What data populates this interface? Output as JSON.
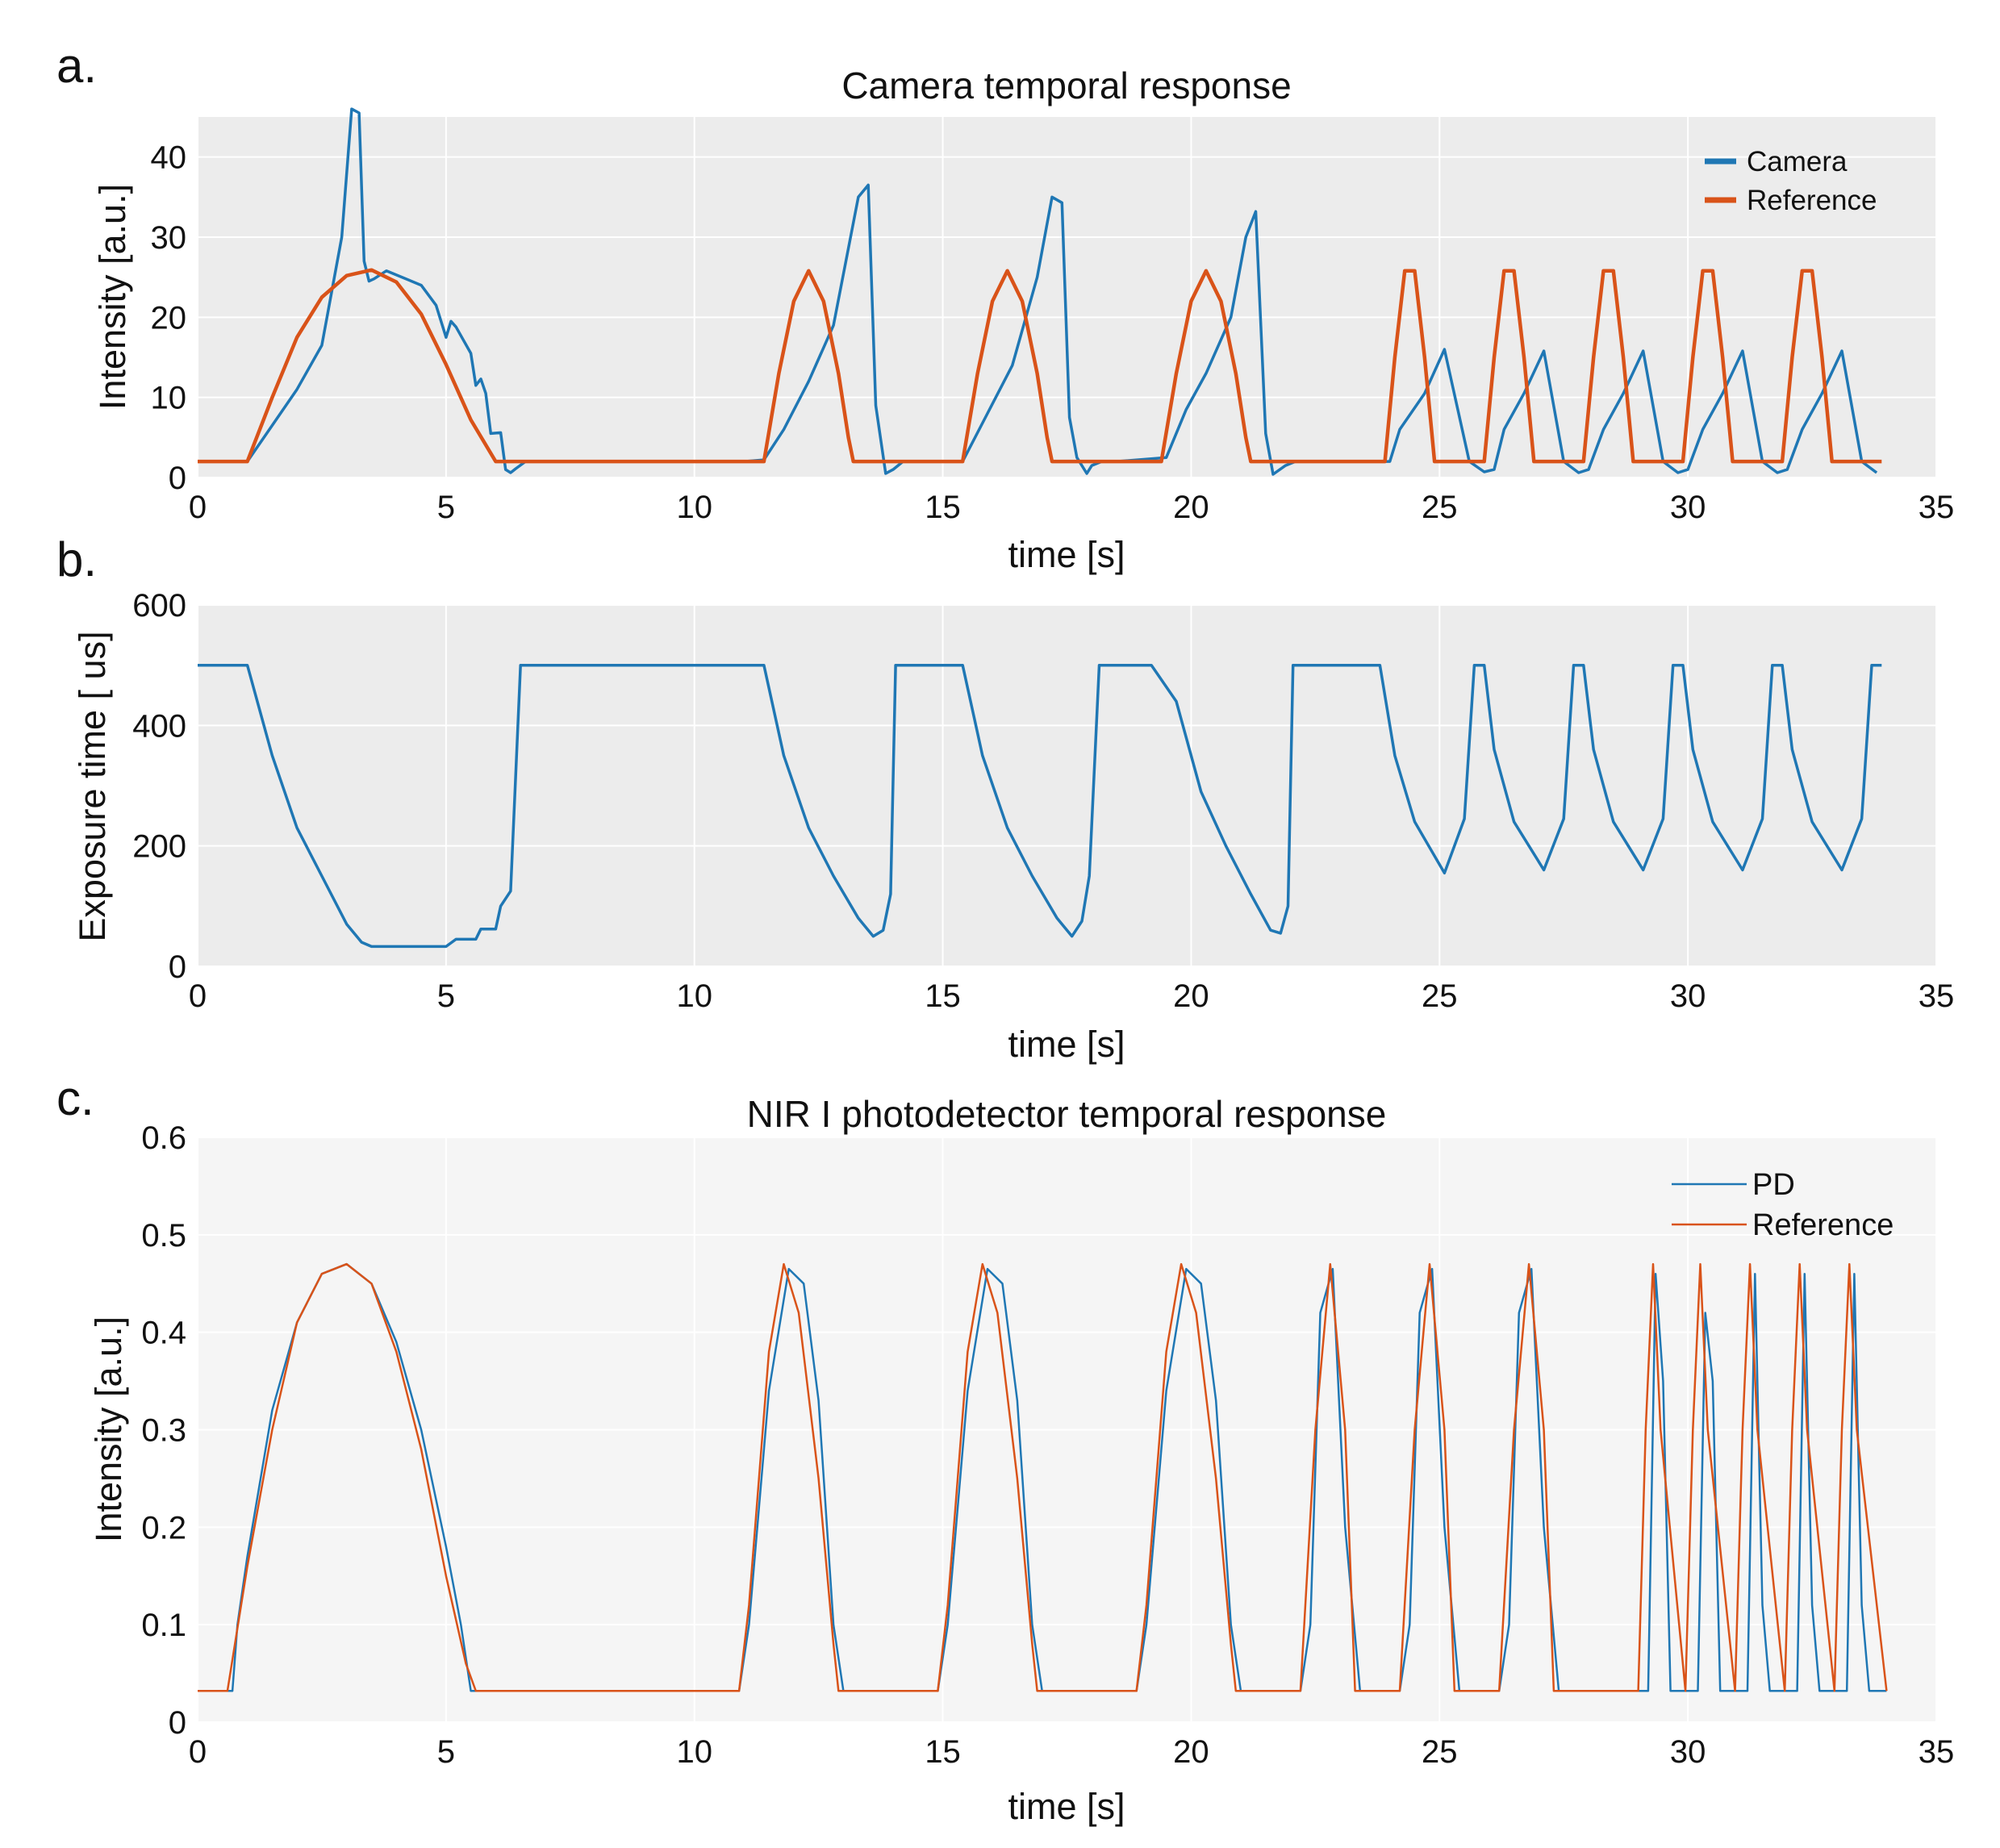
{
  "panels": [
    {
      "letter": "a."
    },
    {
      "letter": "b."
    },
    {
      "letter": "c."
    }
  ],
  "chart_data": [
    {
      "type": "line",
      "title": "Camera temporal response",
      "xlabel": "time [s]",
      "ylabel": "Intensity [a.u.]",
      "xlim": [
        0,
        35
      ],
      "ylim": [
        0,
        45
      ],
      "xticks": [
        0,
        5,
        10,
        15,
        20,
        25,
        30,
        35
      ],
      "yticks": [
        0,
        10,
        20,
        30,
        40
      ],
      "grid": true,
      "legend": "top-right",
      "colors": {
        "Camera": "#1f77b4",
        "Reference": "#d95319"
      },
      "series": [
        {
          "name": "Camera",
          "x": [
            0,
            1.0,
            1.5,
            2.0,
            2.5,
            2.9,
            3.1,
            3.25,
            3.35,
            3.45,
            3.55,
            3.8,
            4.5,
            4.8,
            5.0,
            5.1,
            5.2,
            5.5,
            5.6,
            5.7,
            5.8,
            5.9,
            6.1,
            6.2,
            6.3,
            6.4,
            6.6,
            7.0,
            11.0,
            11.4,
            11.8,
            12.3,
            12.8,
            13.3,
            13.5,
            13.65,
            13.85,
            14.0,
            14.2,
            14.5,
            15.4,
            15.9,
            16.4,
            16.9,
            17.2,
            17.4,
            17.55,
            17.7,
            17.9,
            18.0,
            18.2,
            18.5,
            19.5,
            19.9,
            20.3,
            20.8,
            21.1,
            21.3,
            21.5,
            21.65,
            21.9,
            22.1,
            22.3,
            24.0,
            24.2,
            24.7,
            25.1,
            25.6,
            25.9,
            26.1,
            26.3,
            26.7,
            27.1,
            27.5,
            27.8,
            28.0,
            28.3,
            28.7,
            29.1,
            29.5,
            29.8,
            30.0,
            30.3,
            30.7,
            31.1,
            31.5,
            31.8,
            32.0,
            32.3,
            32.7,
            33.1,
            33.5,
            33.8
          ],
          "y": [
            2,
            2,
            6.5,
            11,
            16.5,
            30,
            46,
            45.5,
            27,
            24.5,
            24.8,
            25.8,
            24,
            21.5,
            17.5,
            19.5,
            18.8,
            15.5,
            11.5,
            12.3,
            10.5,
            5.5,
            5.6,
            1.0,
            0.6,
            1.1,
            2,
            2,
            2,
            2.2,
            6,
            12,
            19,
            35,
            36.5,
            9,
            0.5,
            1.0,
            2.0,
            2.0,
            2.0,
            8,
            14,
            25,
            35,
            34.3,
            7.5,
            2.5,
            0.5,
            1.5,
            2.0,
            2.0,
            2.5,
            8.5,
            13,
            20,
            30,
            33.2,
            5.5,
            0.4,
            1.5,
            2,
            2,
            2,
            6,
            10.5,
            16,
            2,
            0.7,
            1.0,
            6,
            10.5,
            15.8,
            2,
            0.6,
            1.0,
            6,
            10.5,
            15.8,
            2,
            0.6,
            1.0,
            6,
            10.5,
            15.8,
            2,
            0.6,
            1.0,
            6,
            10.5,
            15.8,
            2,
            0.6
          ]
        },
        {
          "name": "Reference",
          "x": [
            0,
            1.0,
            1.5,
            2.0,
            2.5,
            3.0,
            3.5,
            4.0,
            4.5,
            5.0,
            5.5,
            6.0,
            11.4,
            11.7,
            12.0,
            12.3,
            12.6,
            12.9,
            13.1,
            13.2,
            15.4,
            15.7,
            16.0,
            16.3,
            16.6,
            16.9,
            17.1,
            17.2,
            19.4,
            19.7,
            20.0,
            20.3,
            20.6,
            20.9,
            21.1,
            21.2,
            23.9,
            24.1,
            24.3,
            24.5,
            24.7,
            24.9,
            25.9,
            26.1,
            26.3,
            26.5,
            26.7,
            26.9,
            27.9,
            28.1,
            28.3,
            28.5,
            28.7,
            28.9,
            29.9,
            30.1,
            30.3,
            30.5,
            30.7,
            30.9,
            31.9,
            32.1,
            32.3,
            32.5,
            32.7,
            32.9,
            33.9
          ],
          "y": [
            2,
            2,
            10,
            17.5,
            22.5,
            25.2,
            25.9,
            24.4,
            20.4,
            14.1,
            7.2,
            2,
            2,
            13,
            22,
            25.8,
            22,
            13,
            5,
            2,
            2,
            13,
            22,
            25.8,
            22,
            13,
            5,
            2,
            2,
            13,
            22,
            25.8,
            22,
            13,
            5,
            2,
            2,
            15,
            25.8,
            25.8,
            15,
            2,
            2,
            15,
            25.8,
            25.8,
            15,
            2,
            2,
            15,
            25.8,
            25.8,
            15,
            2,
            2,
            15,
            25.8,
            25.8,
            15,
            2,
            2,
            15,
            25.8,
            25.8,
            15,
            2,
            2
          ]
        }
      ]
    },
    {
      "type": "line",
      "title": "",
      "xlabel": "time [s]",
      "ylabel": "Exposure time [ us]",
      "xlim": [
        0,
        35
      ],
      "ylim": [
        0,
        600
      ],
      "xticks": [
        0,
        5,
        10,
        15,
        20,
        25,
        30,
        35
      ],
      "yticks": [
        0,
        200,
        400,
        600
      ],
      "grid": true,
      "colors": {
        "line": "#1f77b4"
      },
      "series": [
        {
          "x": [
            0,
            1.0,
            1.5,
            2.0,
            2.5,
            3.0,
            3.3,
            3.5,
            5.0,
            5.2,
            5.6,
            5.7,
            6.0,
            6.1,
            6.3,
            6.5,
            11.4,
            11.8,
            12.3,
            12.8,
            13.3,
            13.6,
            13.8,
            13.95,
            14.05,
            15.4,
            15.8,
            16.3,
            16.8,
            17.3,
            17.6,
            17.8,
            17.95,
            18.15,
            19.2,
            19.7,
            20.2,
            20.7,
            21.2,
            21.6,
            21.8,
            21.95,
            22.05,
            23.8,
            24.1,
            24.5,
            25.1,
            25.5,
            25.7,
            25.9,
            26.1,
            26.5,
            27.1,
            27.5,
            27.7,
            27.9,
            28.1,
            28.5,
            29.1,
            29.5,
            29.7,
            29.9,
            30.1,
            30.5,
            31.1,
            31.5,
            31.7,
            31.9,
            32.1,
            32.5,
            33.1,
            33.5,
            33.7,
            33.9
          ],
          "y": [
            500,
            500,
            350,
            230,
            150,
            70,
            40,
            33,
            33,
            45,
            45,
            62,
            62,
            100,
            125,
            500,
            500,
            350,
            230,
            150,
            80,
            50,
            60,
            120,
            500,
            500,
            350,
            230,
            150,
            80,
            50,
            75,
            150,
            500,
            500,
            440,
            290,
            200,
            120,
            60,
            55,
            100,
            500,
            500,
            350,
            240,
            155,
            245,
            500,
            500,
            360,
            240,
            160,
            245,
            500,
            500,
            360,
            240,
            160,
            245,
            500,
            500,
            360,
            240,
            160,
            245,
            500,
            500,
            360,
            240,
            160,
            245,
            500,
            500
          ]
        }
      ]
    },
    {
      "type": "line",
      "title": "NIR I photodetector temporal response",
      "xlabel": "time [s]",
      "ylabel": "Intensity [a.u.]",
      "xlim": [
        0,
        35
      ],
      "ylim": [
        0,
        0.6
      ],
      "xticks": [
        0,
        5,
        10,
        15,
        20,
        25,
        30,
        35
      ],
      "yticks": [
        0,
        0.1,
        0.2,
        0.3,
        0.4,
        0.5,
        0.6
      ],
      "grid": true,
      "legend": "top-right",
      "colors": {
        "PD": "#1f77b4",
        "Reference": "#d95319"
      },
      "series": [
        {
          "name": "PD",
          "x": [
            0,
            0.7,
            0.8,
            1.0,
            1.5,
            2.0,
            2.5,
            3.0,
            3.5,
            4.0,
            4.5,
            5.0,
            5.3,
            5.5,
            10.9,
            11.1,
            11.5,
            11.9,
            12.2,
            12.5,
            12.8,
            13.0,
            14.9,
            15.1,
            15.5,
            15.9,
            16.2,
            16.5,
            16.8,
            17.0,
            18.9,
            19.1,
            19.5,
            19.9,
            20.2,
            20.5,
            20.8,
            21.0,
            22.2,
            22.4,
            22.6,
            22.85,
            23.1,
            23.4,
            24.2,
            24.4,
            24.6,
            24.85,
            25.1,
            25.4,
            26.2,
            26.4,
            26.6,
            26.85,
            27.1,
            27.4,
            29.2,
            29.35,
            29.5,
            29.65,
            30.2,
            30.35,
            30.5,
            30.65,
            31.2,
            31.35,
            31.5,
            31.65,
            32.2,
            32.35,
            32.5,
            32.65,
            33.2,
            33.35,
            33.5,
            33.65,
            34.0
          ],
          "y": [
            0.032,
            0.032,
            0.1,
            0.17,
            0.32,
            0.41,
            0.46,
            0.47,
            0.45,
            0.39,
            0.3,
            0.18,
            0.1,
            0.032,
            0.032,
            0.1,
            0.34,
            0.465,
            0.45,
            0.33,
            0.1,
            0.032,
            0.032,
            0.1,
            0.34,
            0.465,
            0.45,
            0.33,
            0.1,
            0.032,
            0.032,
            0.1,
            0.34,
            0.465,
            0.45,
            0.33,
            0.1,
            0.032,
            0.032,
            0.1,
            0.42,
            0.465,
            0.2,
            0.032,
            0.032,
            0.1,
            0.42,
            0.465,
            0.2,
            0.032,
            0.032,
            0.1,
            0.42,
            0.465,
            0.2,
            0.032,
            0.032,
            0.46,
            0.35,
            0.032,
            0.032,
            0.42,
            0.35,
            0.032,
            0.032,
            0.46,
            0.12,
            0.032,
            0.032,
            0.46,
            0.12,
            0.032,
            0.032,
            0.46,
            0.12,
            0.032,
            0.032
          ]
        },
        {
          "name": "Reference",
          "x": [
            0,
            0.6,
            1.0,
            1.5,
            2.0,
            2.5,
            3.0,
            3.5,
            4.0,
            4.5,
            5.0,
            5.4,
            5.6,
            10.9,
            11.1,
            11.5,
            11.8,
            12.1,
            12.5,
            12.8,
            12.9,
            14.9,
            15.1,
            15.5,
            15.8,
            16.1,
            16.5,
            16.8,
            16.9,
            18.9,
            19.1,
            19.5,
            19.8,
            20.1,
            20.5,
            20.8,
            20.9,
            22.2,
            22.5,
            22.8,
            23.1,
            23.3,
            24.2,
            24.5,
            24.8,
            25.1,
            25.3,
            26.2,
            26.5,
            26.8,
            27.1,
            27.3,
            29.0,
            29.15,
            29.3,
            29.45,
            29.95,
            30.1,
            30.25,
            30.4,
            30.95,
            31.1,
            31.25,
            31.4,
            31.95,
            32.1,
            32.25,
            32.4,
            32.95,
            33.1,
            33.25,
            33.4,
            34.0
          ],
          "y": [
            0.032,
            0.032,
            0.16,
            0.3,
            0.41,
            0.46,
            0.47,
            0.45,
            0.38,
            0.28,
            0.15,
            0.06,
            0.032,
            0.032,
            0.12,
            0.38,
            0.47,
            0.42,
            0.25,
            0.08,
            0.032,
            0.032,
            0.12,
            0.38,
            0.47,
            0.42,
            0.25,
            0.08,
            0.032,
            0.032,
            0.12,
            0.38,
            0.47,
            0.42,
            0.25,
            0.08,
            0.032,
            0.032,
            0.3,
            0.47,
            0.3,
            0.032,
            0.032,
            0.3,
            0.47,
            0.3,
            0.032,
            0.032,
            0.3,
            0.47,
            0.3,
            0.032,
            0.032,
            0.3,
            0.47,
            0.3,
            0.032,
            0.3,
            0.47,
            0.3,
            0.032,
            0.3,
            0.47,
            0.3,
            0.032,
            0.3,
            0.47,
            0.3,
            0.032,
            0.3,
            0.47,
            0.3,
            0.032
          ]
        }
      ]
    }
  ]
}
